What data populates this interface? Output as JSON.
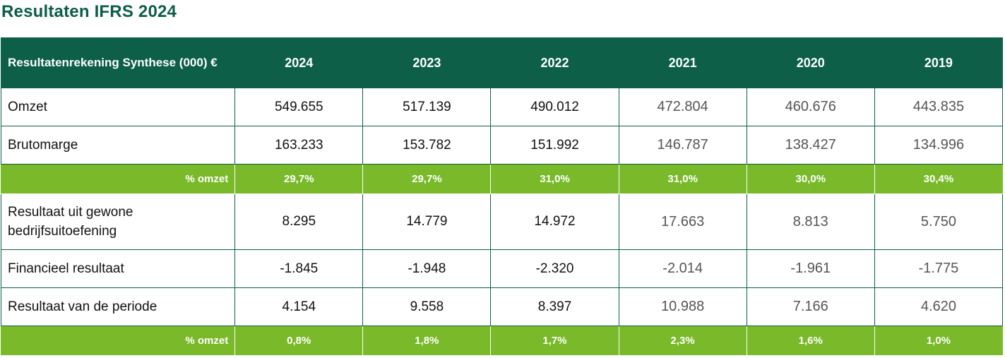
{
  "page": {
    "title": "Resultaten IFRS 2024"
  },
  "table": {
    "header": {
      "label": "Resultatenrekening Synthese (000) €",
      "years": [
        "2024",
        "2023",
        "2022",
        "2021",
        "2020",
        "2019"
      ]
    },
    "rows": [
      {
        "label": "Omzet",
        "values": [
          "549.655",
          "517.139",
          "490.012",
          "472.804",
          "460.676",
          "443.835"
        ]
      },
      {
        "label": "Brutomarge",
        "values": [
          "163.233",
          "153.782",
          "151.992",
          "146.787",
          "138.427",
          "134.996"
        ]
      },
      {
        "label": "% omzet",
        "values": [
          "29,7%",
          "29,7%",
          "31,0%",
          "31,0%",
          "30,0%",
          "30,4%"
        ]
      },
      {
        "label": "Resultaat uit gewone bedrijfsuitoefening",
        "values": [
          "8.295",
          "14.779",
          "14.972",
          "17.663",
          "8.813",
          "5.750"
        ]
      },
      {
        "label": "Financieel resultaat",
        "values": [
          "-1.845",
          "-1.948",
          "-2.320",
          "-2.014",
          "-1.961",
          "-1.775"
        ]
      },
      {
        "label": "Resultaat van de periode",
        "values": [
          "4.154",
          "9.558",
          "8.397",
          "10.988",
          "7.166",
          "4.620"
        ]
      },
      {
        "label": "% omzet",
        "values": [
          "0,8%",
          "1,8%",
          "1,7%",
          "2,3%",
          "1,6%",
          "1,0%"
        ]
      }
    ]
  },
  "colors": {
    "header_green": "#0d5f48",
    "highlight_green": "#7ab929",
    "title_green": "#0b5e45"
  }
}
